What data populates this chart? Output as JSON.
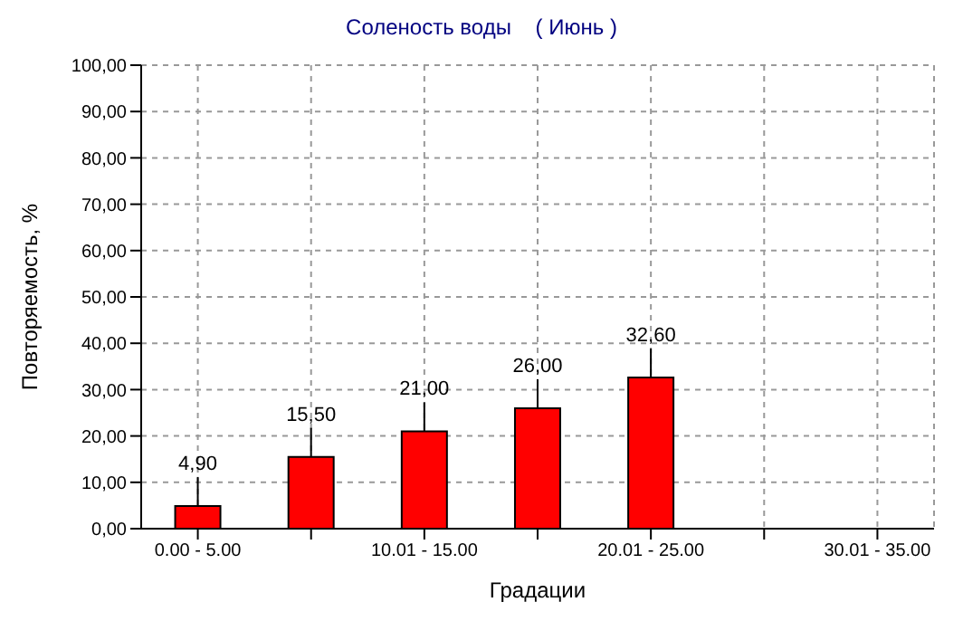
{
  "chart_data": {
    "type": "bar",
    "title": "Соленость воды    ( Июнь )",
    "xlabel": "Градации",
    "ylabel": "Повторяемость, %",
    "categories": [
      "0.00 - 5.00",
      null,
      "10.01 - 15.00",
      null,
      "20.01 - 25.00",
      null,
      "30.01 - 35.00"
    ],
    "values": [
      4.9,
      15.5,
      21.0,
      26.0,
      32.6,
      null,
      null
    ],
    "value_labels": [
      "4,90",
      "15,50",
      "21,00",
      "26,00",
      "32,60",
      null,
      null
    ],
    "color": "#ff0000",
    "ylim": [
      0,
      100
    ],
    "yticks": [
      {
        "value": 0,
        "label": "0,00"
      },
      {
        "value": 10,
        "label": "10,00"
      },
      {
        "value": 20,
        "label": "20,00"
      },
      {
        "value": 30,
        "label": "30,00"
      },
      {
        "value": 40,
        "label": "40,00"
      },
      {
        "value": 50,
        "label": "50,00"
      },
      {
        "value": 60,
        "label": "60,00"
      },
      {
        "value": 70,
        "label": "70,00"
      },
      {
        "value": 80,
        "label": "80,00"
      },
      {
        "value": 90,
        "label": "90,00"
      },
      {
        "value": 100,
        "label": "100,00"
      }
    ],
    "grid": true,
    "legend": false
  }
}
